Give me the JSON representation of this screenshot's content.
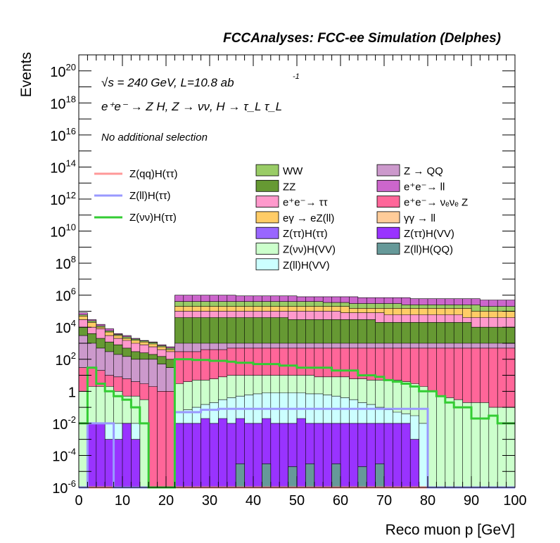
{
  "chart_data": {
    "type": "area",
    "title": "FCCAnalyses: FCC-ee Simulation (Delphes)",
    "xlabel": "Reco muon p [GeV]",
    "ylabel": "Events",
    "xlim": [
      0,
      100
    ],
    "ylim": [
      1e-06,
      1e+21
    ],
    "yscale": "log",
    "x_ticks": [
      "0",
      "10",
      "20",
      "30",
      "40",
      "50",
      "60",
      "70",
      "80",
      "90",
      "100"
    ],
    "y_ticks": [
      {
        "base": "10",
        "exp": "-6"
      },
      {
        "base": "10",
        "exp": "-4"
      },
      {
        "base": "10",
        "exp": "-2"
      },
      {
        "base": "1",
        "exp": ""
      },
      {
        "base": "10",
        "exp": "2"
      },
      {
        "base": "10",
        "exp": "4"
      },
      {
        "base": "10",
        "exp": "6"
      },
      {
        "base": "10",
        "exp": "8"
      },
      {
        "base": "10",
        "exp": "10"
      },
      {
        "base": "10",
        "exp": "12"
      },
      {
        "base": "10",
        "exp": "14"
      },
      {
        "base": "10",
        "exp": "16"
      },
      {
        "base": "10",
        "exp": "18"
      },
      {
        "base": "10",
        "exp": "20"
      }
    ],
    "annotations": {
      "energy_line": "√s = 240 GeV, L=10.8 ab",
      "energy_sup": "-1",
      "process_line": "e⁺e⁻ → Z H, Z → νν, H → τ_L τ_L",
      "selection": "No additional selection"
    },
    "signal_legend": [
      {
        "name": "Z(qq)H(ττ)",
        "color": "#ff9999"
      },
      {
        "name": "Z(ll)H(ττ)",
        "color": "#9999ff"
      },
      {
        "name": "Z(νν)H(ττ)",
        "color": "#33cc33"
      }
    ],
    "background_legend": [
      {
        "name": "WW",
        "color": "#99cc66"
      },
      {
        "name": "Z → QQ",
        "color": "#cc99cc"
      },
      {
        "name": "ZZ",
        "color": "#669933"
      },
      {
        "name": "e⁺e⁻→ ll",
        "color": "#cc66cc"
      },
      {
        "name": "e⁺e⁻→ ττ",
        "color": "#ff99cc"
      },
      {
        "name": "e⁺e⁻→ νₑνₑ Z",
        "color": "#ff6699"
      },
      {
        "name": "eγ → eZ(ll)",
        "color": "#ffcc66"
      },
      {
        "name": "γγ → ll",
        "color": "#ffcc99"
      },
      {
        "name": "Z(ττ)H(ττ)",
        "color": "#9966ff"
      },
      {
        "name": "Z(ττ)H(VV)",
        "color": "#9933ff"
      },
      {
        "name": "Z(νν)H(VV)",
        "color": "#ccffcc"
      },
      {
        "name": "Z(ll)H(QQ)",
        "color": "#669999"
      },
      {
        "name": "Z(ll)H(VV)",
        "color": "#ccffff"
      }
    ],
    "x_bins": [
      0,
      2,
      4,
      6,
      8,
      10,
      12,
      14,
      16,
      18,
      20,
      22,
      24,
      26,
      28,
      30,
      32,
      34,
      36,
      38,
      40,
      42,
      44,
      46,
      48,
      50,
      52,
      54,
      56,
      58,
      60,
      62,
      64,
      66,
      68,
      70,
      72,
      74,
      76,
      78,
      80,
      82,
      84,
      86,
      88,
      90,
      92,
      94,
      96,
      98,
      100
    ],
    "stack_tops": [
      {
        "name": "Z(ll)H(QQ)",
        "color": "#669999",
        "values": [
          0,
          0,
          0,
          0,
          0,
          0,
          0,
          0,
          0,
          0,
          0,
          0,
          0,
          0,
          0,
          0,
          0,
          0,
          3e-05,
          1e-06,
          1e-06,
          3e-05,
          1e-06,
          1e-06,
          2e-05,
          1e-06,
          3e-05,
          1e-06,
          1e-06,
          3e-05,
          1e-06,
          1e-06,
          2e-05,
          1e-06,
          3e-05,
          1e-06,
          1e-06,
          0,
          0,
          0,
          0,
          0,
          0,
          0,
          0,
          0,
          0,
          0,
          0,
          0
        ]
      },
      {
        "name": "Z(ττ)H(VV)",
        "color": "#9933ff",
        "values": [
          0,
          0.01,
          0.01,
          0.001,
          0.001,
          0.01,
          0.001,
          0,
          0,
          0,
          0,
          0.01,
          0.01,
          0.01,
          0.02,
          0.01,
          0.02,
          0.01,
          0.02,
          0.01,
          0.01,
          0.02,
          0.01,
          0.01,
          0.01,
          0.02,
          0.01,
          0.01,
          0.01,
          0.01,
          0.01,
          0.01,
          0.01,
          0.01,
          0.01,
          0.01,
          0.01,
          0.01,
          0.001,
          0,
          0,
          0,
          0,
          0,
          0,
          0,
          0,
          0,
          0,
          0
        ]
      },
      {
        "name": "Z(ll)H(VV)",
        "color": "#ccffff",
        "values": [
          0,
          0.01,
          0.01,
          0.01,
          0.01,
          0.01,
          0.01,
          0,
          0,
          0,
          0,
          0.05,
          0.07,
          0.1,
          0.15,
          0.2,
          0.3,
          0.4,
          0.5,
          0.6,
          0.7,
          0.8,
          0.8,
          0.8,
          0.8,
          0.8,
          0.7,
          0.7,
          0.6,
          0.5,
          0.4,
          0.3,
          0.2,
          0.15,
          0.1,
          0.07,
          0.05,
          0.04,
          0.03,
          0.01,
          0,
          0,
          0,
          0,
          0,
          0,
          0,
          0,
          0,
          0
        ]
      },
      {
        "name": "Z(νν)H(VV)",
        "color": "#ccffcc",
        "values": [
          1,
          2,
          2,
          2,
          1,
          0.5,
          0.5,
          0.3,
          0,
          0,
          0,
          3,
          4,
          5,
          5,
          6,
          8,
          10,
          10,
          10,
          10,
          10,
          10,
          10,
          10,
          10,
          10,
          8,
          8,
          8,
          8,
          6,
          6,
          5,
          5,
          5,
          5,
          4,
          3,
          2,
          1,
          0.5,
          0.4,
          0.3,
          0.2,
          0.2,
          0.2,
          0.1,
          0.1,
          0.1
        ]
      },
      {
        "name": "e⁺e⁻→ νₑνₑ Z",
        "color": "#ff6699",
        "values": [
          30,
          30,
          20,
          10,
          8,
          6,
          4,
          3,
          2,
          1,
          1,
          300,
          300,
          300,
          400,
          400,
          400,
          500,
          500,
          500,
          500,
          500,
          500,
          500,
          500,
          500,
          500,
          500,
          500,
          500,
          500,
          500,
          500,
          500,
          500,
          500,
          500,
          500,
          500,
          500,
          500,
          500,
          500,
          500,
          500,
          500,
          500,
          500,
          500,
          500
        ]
      },
      {
        "name": "Z → QQ",
        "color": "#cc99cc",
        "values": [
          3000,
          1000,
          500,
          300,
          200,
          150,
          100,
          100,
          100,
          50,
          30,
          1000,
          1000,
          1000,
          1000,
          1000,
          1000,
          1000,
          1000,
          1000,
          1000,
          1000,
          1000,
          1000,
          1000,
          1000,
          1000,
          1000,
          1000,
          1000,
          1000,
          1000,
          1000,
          1000,
          1000,
          1000,
          1000,
          1000,
          1000,
          1000,
          1000,
          1000,
          1000,
          1000,
          1000,
          1000,
          1000,
          1000,
          1000,
          1000
        ]
      },
      {
        "name": "ZZ",
        "color": "#669933",
        "values": [
          10000,
          4000,
          2000,
          1200,
          800,
          500,
          300,
          250,
          200,
          150,
          100,
          40000,
          40000,
          40000,
          40000,
          40000,
          40000,
          40000,
          40000,
          40000,
          40000,
          40000,
          40000,
          40000,
          30000,
          30000,
          30000,
          30000,
          30000,
          30000,
          30000,
          30000,
          30000,
          30000,
          20000,
          20000,
          20000,
          20000,
          20000,
          20000,
          20000,
          20000,
          20000,
          20000,
          20000,
          10000,
          10000,
          10000,
          10000,
          10000
        ]
      },
      {
        "name": "e⁺e⁻→ ττ",
        "color": "#ff99cc",
        "values": [
          30000,
          10000,
          8000,
          3000,
          2000,
          1500,
          1000,
          800,
          600,
          400,
          300,
          100000,
          100000,
          100000,
          100000,
          100000,
          100000,
          100000,
          100000,
          100000,
          100000,
          100000,
          100000,
          100000,
          100000,
          100000,
          100000,
          100000,
          100000,
          100000,
          80000,
          80000,
          80000,
          80000,
          80000,
          60000,
          60000,
          60000,
          60000,
          60000,
          60000,
          60000,
          60000,
          60000,
          40000,
          40000,
          40000,
          40000,
          40000,
          40000
        ]
      },
      {
        "name": "eγ → eZ(ll)",
        "color": "#ffcc66",
        "values": [
          50000,
          20000,
          10000,
          5000,
          3000,
          2000,
          1500,
          1200,
          900,
          600,
          400,
          200000,
          200000,
          200000,
          200000,
          200000,
          200000,
          200000,
          200000,
          200000,
          200000,
          200000,
          200000,
          200000,
          200000,
          200000,
          200000,
          200000,
          200000,
          200000,
          200000,
          150000,
          150000,
          150000,
          150000,
          150000,
          150000,
          150000,
          150000,
          150000,
          150000,
          150000,
          150000,
          150000,
          150000,
          100000,
          100000,
          100000,
          100000,
          100000
        ]
      },
      {
        "name": "WW",
        "color": "#99cc66",
        "values": [
          60000,
          25000,
          12000,
          6000,
          3500,
          2500,
          1800,
          1400,
          1100,
          700,
          500,
          400000,
          400000,
          400000,
          400000,
          400000,
          400000,
          400000,
          400000,
          400000,
          400000,
          400000,
          400000,
          400000,
          400000,
          400000,
          400000,
          400000,
          350000,
          350000,
          350000,
          300000,
          300000,
          300000,
          300000,
          300000,
          300000,
          250000,
          250000,
          250000,
          250000,
          250000,
          250000,
          250000,
          250000,
          250000,
          200000,
          200000,
          200000,
          200000
        ]
      },
      {
        "name": "e⁺e⁻→ ll",
        "color": "#cc66cc",
        "values": [
          80000,
          30000,
          15000,
          8000,
          4000,
          3000,
          2000,
          1500,
          1200,
          800,
          600,
          1000000,
          1000000,
          1000000,
          1000000,
          1000000,
          1000000,
          1000000,
          900000,
          900000,
          900000,
          900000,
          900000,
          900000,
          900000,
          800000,
          800000,
          800000,
          800000,
          800000,
          800000,
          800000,
          700000,
          700000,
          700000,
          700000,
          700000,
          700000,
          600000,
          600000,
          600000,
          600000,
          600000,
          600000,
          600000,
          600000,
          500000,
          500000,
          500000,
          500000
        ]
      }
    ],
    "signal_lines": [
      {
        "name": "Z(qq)H(ττ)",
        "color": "#ff9999",
        "values": [
          0,
          0,
          0,
          0,
          0,
          0,
          0,
          0,
          0,
          0,
          0,
          1e-06,
          0,
          0,
          0,
          0,
          0,
          0,
          0,
          0,
          0,
          0,
          0,
          0,
          0,
          0,
          0,
          0,
          0,
          0,
          0,
          0,
          0,
          0,
          0,
          0,
          0,
          0,
          0,
          0,
          0,
          0,
          0,
          0,
          0,
          0,
          0,
          0,
          0,
          0
        ]
      },
      {
        "name": "Z(ll)H(ττ)",
        "color": "#9999ff",
        "values": [
          0,
          0.01,
          0.01,
          0.01,
          0,
          0,
          0,
          0,
          0,
          0,
          0,
          0.05,
          0.05,
          0.05,
          0.07,
          0.07,
          0.08,
          0.08,
          0.08,
          0.08,
          0.08,
          0.08,
          0.08,
          0.08,
          0.08,
          0.08,
          0.08,
          0.08,
          0.08,
          0.08,
          0.08,
          0.08,
          0.08,
          0.08,
          0.08,
          0.08,
          0.08,
          0.08,
          0.08,
          0.08,
          0,
          0,
          0,
          0,
          0,
          0,
          0,
          0,
          0,
          0
        ]
      },
      {
        "name": "Z(νν)H(ττ)",
        "color": "#33cc33",
        "values": [
          0.01,
          30,
          3,
          1,
          0.5,
          0.3,
          0.1,
          0.01,
          0,
          0,
          0,
          100,
          100,
          90,
          90,
          80,
          80,
          70,
          60,
          60,
          50,
          50,
          50,
          40,
          40,
          30,
          30,
          30,
          30,
          20,
          20,
          20,
          10,
          10,
          8,
          5,
          4,
          3,
          2,
          1,
          1,
          0.5,
          0.2,
          0.1,
          0.1,
          0.02,
          0.02,
          0.03,
          0.01,
          0.01
        ]
      }
    ]
  }
}
